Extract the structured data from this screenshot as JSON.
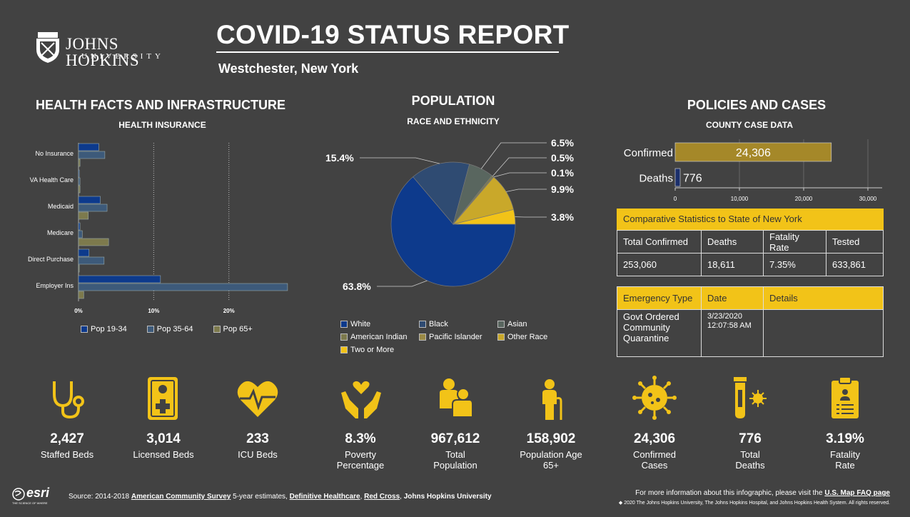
{
  "header": {
    "logo_name": "JOHNS HOPKINS",
    "logo_sub": "UNIVERSITY",
    "title": "COVID-19 STATUS REPORT",
    "location": "Westchester,  New York"
  },
  "sections": {
    "health": {
      "title": "HEALTH FACTS AND INFRASTRUCTURE",
      "subtitle": "HEALTH INSURANCE"
    },
    "population": {
      "title": "POPULATION",
      "subtitle": "RACE AND ETHNICITY"
    },
    "policies": {
      "title": "POLICIES AND CASES",
      "subtitle": "COUNTY CASE DATA"
    }
  },
  "chart_data": [
    {
      "type": "bar",
      "orientation": "horizontal",
      "categories": [
        "No Insurance",
        "VA Health Care",
        "Medicaid",
        "Medicare",
        "Direct Purchase",
        "Employer Ins"
      ],
      "series": [
        {
          "name": "Pop 19-34",
          "color": "#0d3a8c",
          "values": [
            2.7,
            0.1,
            2.9,
            0.2,
            1.4,
            10.9
          ]
        },
        {
          "name": "Pop 35-64",
          "color": "#3d5a7a",
          "values": [
            3.5,
            0.2,
            3.8,
            0.5,
            3.4,
            27.8
          ]
        },
        {
          "name": "Pop 65+",
          "color": "#7d7a4d",
          "values": [
            0.2,
            0.2,
            1.3,
            4.0,
            0.1,
            0.7
          ]
        }
      ],
      "xticks": [
        "0%",
        "10%",
        "20%"
      ],
      "xlim": [
        0,
        28
      ],
      "legend": "bottom"
    },
    {
      "type": "pie",
      "slices": [
        {
          "name": "White",
          "value": 63.8,
          "label": "63.8%",
          "color": "#0d3a8c"
        },
        {
          "name": "Black",
          "value": 15.4,
          "label": "15.4%",
          "color": "#2f4b72"
        },
        {
          "name": "Asian",
          "value": 6.5,
          "label": "6.5%",
          "color": "#59665f"
        },
        {
          "name": "American Indian",
          "value": 0.5,
          "label": "0.5%",
          "color": "#7d7a4d"
        },
        {
          "name": "Pacific Islander",
          "value": 0.1,
          "label": "0.1%",
          "color": "#9a8a45"
        },
        {
          "name": "Other Race",
          "value": 9.9,
          "label": "9.9%",
          "color": "#c9a82a"
        },
        {
          "name": "Two or More",
          "value": 3.8,
          "label": "3.8%",
          "color": "#f2c318"
        }
      ],
      "legend": "bottom"
    },
    {
      "type": "bar",
      "orientation": "horizontal",
      "categories": [
        "Confirmed",
        "Deaths"
      ],
      "values": [
        24306,
        776
      ],
      "value_labels": [
        "24,306",
        "776"
      ],
      "colors": [
        "#a58829",
        "#1b2f6b"
      ],
      "xticks": [
        "0",
        "10,000",
        "20,000",
        "30,000"
      ],
      "xlim": [
        0,
        30000
      ]
    }
  ],
  "comparative": {
    "title": "Comparative Statistics to State of New York",
    "headers": [
      "Total Confirmed",
      "Deaths",
      "Fatality Rate",
      "Tested"
    ],
    "values": [
      "253,060",
      "18,611",
      "7.35%",
      "633,861"
    ]
  },
  "emergency": {
    "headers": [
      "Emergency Type",
      "Date",
      "Details"
    ],
    "row": [
      "Govt Ordered Community Quarantine",
      "3/23/2020 12:07:58 AM",
      ""
    ]
  },
  "kpis": [
    {
      "icon": "stethoscope-icon",
      "value": "2,427",
      "label": "Staffed Beds"
    },
    {
      "icon": "hospital-bed-icon",
      "value": "3,014",
      "label": "Licensed Beds"
    },
    {
      "icon": "heartbeat-icon",
      "value": "233",
      "label": "ICU Beds"
    },
    {
      "icon": "helping-hands-icon",
      "value": "8.3%",
      "label": "Poverty Percentage"
    },
    {
      "icon": "people-icon",
      "value": "967,612",
      "label": "Total Population"
    },
    {
      "icon": "elderly-icon",
      "value": "158,902",
      "label": "Population Age 65+"
    },
    {
      "icon": "virus-icon",
      "value": "24,306",
      "label": "Confirmed Cases"
    },
    {
      "icon": "test-tube-icon",
      "value": "776",
      "label": "Total Deaths"
    },
    {
      "icon": "clipboard-icon",
      "value": "3.19%",
      "label": "Fatality Rate"
    }
  ],
  "footer": {
    "esri": "esri",
    "esri_tag": "THE SCIENCE OF WHERE",
    "source_prefix": "Source: 2014-2018",
    "source_acs": "American Community Survey",
    "source_mid": "5-year estimates,",
    "source_dh": "Definitive Healthcare",
    "source_rc": "Red Cross",
    "source_jhu": "Johns Hopkins University",
    "more_info": "For more information about this infographic, please visit the",
    "faq_link": "U.S. Map FAQ page",
    "copyright": "◆ 2020 The Johns Hopkins University, The Johns Hopkins Hospital, and Johns Hopkins Health System. All rights reserved."
  },
  "colors": {
    "background": "#424242",
    "accent": "#f2c318"
  }
}
